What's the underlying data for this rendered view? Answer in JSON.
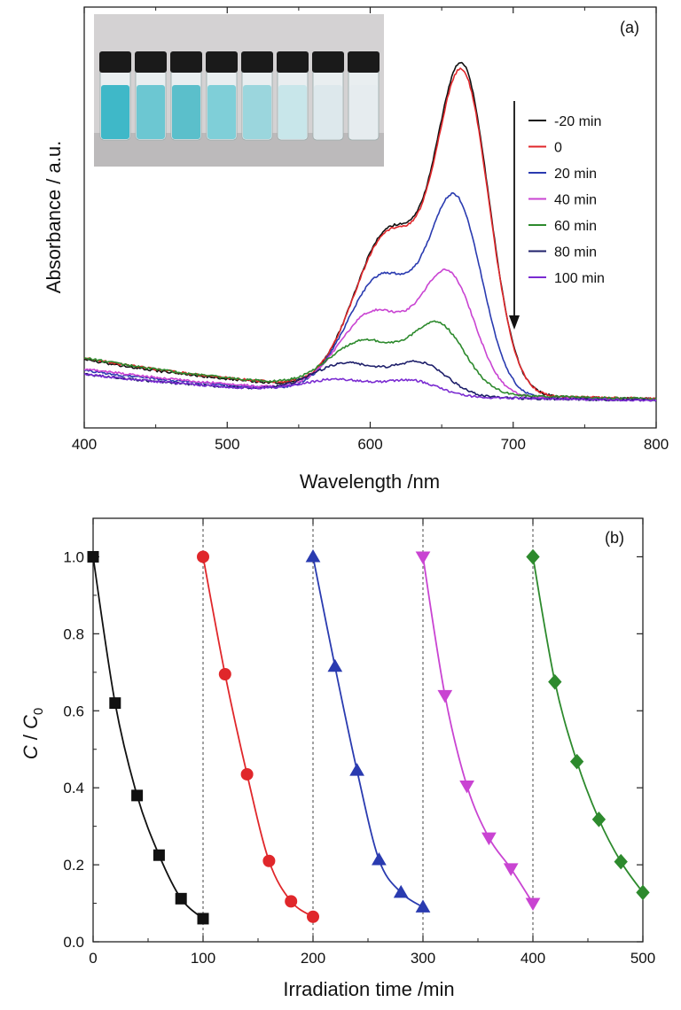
{
  "chart_data": [
    {
      "panel_label": "(a)",
      "type": "line",
      "xlabel": "Wavelength /nm",
      "ylabel": "Absorbance / a.u.",
      "xlim": [
        400,
        800
      ],
      "x_ticks": [
        "400",
        "500",
        "600",
        "700",
        "800"
      ],
      "y_ticks_shown": false,
      "legend_placement": "right, with downward arrow indicating decreasing absorbance",
      "inset": "photograph of eight vials with blue solution fading from deep blue to nearly colorless",
      "series": [
        {
          "name": "-20 min",
          "color": "#111111",
          "peak_x": 665,
          "peak_value": 1.0,
          "shoulder_value": 0.53,
          "baseline_400": 0.12
        },
        {
          "name": "0",
          "color": "#e0272b",
          "peak_x": 665,
          "peak_value": 0.98,
          "shoulder_value": 0.52,
          "baseline_400": 0.125
        },
        {
          "name": "20 min",
          "color": "#2a3bb0",
          "peak_x": 660,
          "peak_value": 0.62,
          "shoulder_value": 0.39,
          "baseline_400": 0.09
        },
        {
          "name": "40 min",
          "color": "#c944d2",
          "peak_x": 655,
          "peak_value": 0.39,
          "shoulder_value": 0.27,
          "baseline_400": 0.095
        },
        {
          "name": "60 min",
          "color": "#2d8a2d",
          "peak_x": 648,
          "peak_value": 0.22,
          "shoulder_value": 0.16,
          "baseline_400": 0.125
        },
        {
          "name": "80 min",
          "color": "#1e1f6a",
          "peak_x": 636,
          "peak_value": 0.11,
          "shoulder_value": 0.1,
          "baseline_400": 0.08
        },
        {
          "name": "100 min",
          "color": "#7a2bd1",
          "peak_x": 630,
          "peak_value": 0.05,
          "shoulder_value": 0.045,
          "baseline_400": 0.08
        }
      ]
    },
    {
      "panel_label": "(b)",
      "type": "scatter",
      "xlabel": "Irradiation time /min",
      "ylabel": "C / C0",
      "xlim": [
        0,
        500
      ],
      "ylim": [
        0,
        1.1
      ],
      "x_ticks": [
        "0",
        "100",
        "200",
        "300",
        "400",
        "500"
      ],
      "y_ticks": [
        "0.0",
        "0.2",
        "0.4",
        "0.6",
        "0.8",
        "1.0"
      ],
      "dashed_verticals": [
        100,
        200,
        300,
        400
      ],
      "series": [
        {
          "marker": "square",
          "color": "#111111",
          "x": [
            0,
            20,
            40,
            60,
            80,
            100
          ],
          "y": [
            1.0,
            0.62,
            0.38,
            0.225,
            0.112,
            0.06
          ]
        },
        {
          "marker": "circle",
          "color": "#e0272b",
          "x": [
            100,
            120,
            140,
            160,
            180,
            200
          ],
          "y": [
            1.0,
            0.695,
            0.435,
            0.21,
            0.105,
            0.065
          ]
        },
        {
          "marker": "triangle",
          "color": "#2a3bb0",
          "x": [
            200,
            220,
            240,
            260,
            280,
            300
          ],
          "y": [
            1.0,
            0.715,
            0.445,
            0.213,
            0.128,
            0.09
          ]
        },
        {
          "marker": "inverted-triangle",
          "color": "#c944d2",
          "x": [
            300,
            320,
            340,
            360,
            380,
            400
          ],
          "y": [
            1.0,
            0.64,
            0.405,
            0.27,
            0.19,
            0.1
          ]
        },
        {
          "marker": "diamond",
          "color": "#2d8a2d",
          "x": [
            400,
            420,
            440,
            460,
            480,
            500
          ],
          "y": [
            1.0,
            0.675,
            0.468,
            0.318,
            0.208,
            0.128
          ]
        }
      ]
    }
  ]
}
